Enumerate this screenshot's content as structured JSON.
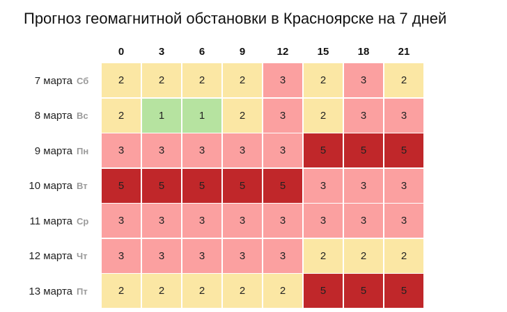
{
  "title": "Прогноз геомагнитной обстановки в Красноярске на 7 дней",
  "colors": {
    "1": "#b6e3a0",
    "2": "#fbe7a4",
    "3": "#fba0a0",
    "5": "#c0272a"
  },
  "chart_data": {
    "type": "heatmap",
    "title": "Прогноз геомагнитной обстановки в Красноярске на 7 дней",
    "x": [
      "0",
      "3",
      "6",
      "9",
      "12",
      "15",
      "18",
      "21"
    ],
    "rows": [
      {
        "date": "7 марта",
        "day": "Сб",
        "values": [
          2,
          2,
          2,
          2,
          3,
          2,
          3,
          2
        ]
      },
      {
        "date": "8 марта",
        "day": "Вс",
        "values": [
          2,
          1,
          1,
          2,
          3,
          2,
          3,
          3
        ]
      },
      {
        "date": "9 марта",
        "day": "Пн",
        "values": [
          3,
          3,
          3,
          3,
          3,
          5,
          5,
          5
        ]
      },
      {
        "date": "10 марта",
        "day": "Вт",
        "values": [
          5,
          5,
          5,
          5,
          5,
          3,
          3,
          3
        ]
      },
      {
        "date": "11 марта",
        "day": "Ср",
        "values": [
          3,
          3,
          3,
          3,
          3,
          3,
          3,
          3
        ]
      },
      {
        "date": "12 марта",
        "day": "Чт",
        "values": [
          3,
          3,
          3,
          3,
          3,
          2,
          2,
          2
        ]
      },
      {
        "date": "13 марта",
        "day": "Пт",
        "values": [
          2,
          2,
          2,
          2,
          2,
          5,
          5,
          5
        ]
      }
    ]
  }
}
